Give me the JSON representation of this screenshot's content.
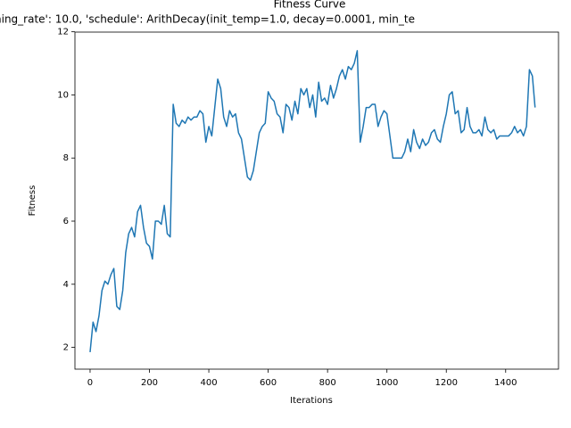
{
  "chart_data": {
    "type": "line",
    "title": "Fitness Curve",
    "subtitle": "ning_rate': 10.0, 'schedule': ArithDecay(init_temp=1.0, decay=0.0001, min_te",
    "x_label": "Iterations",
    "y_label": "Fitness",
    "xlim": [
      -51,
      1578
    ],
    "ylim": [
      1.31,
      11.99
    ],
    "xticks": [
      0,
      200,
      400,
      600,
      800,
      1000,
      1200,
      1400
    ],
    "yticks": [
      2,
      4,
      6,
      8,
      10,
      12
    ],
    "x": [
      0,
      10,
      20,
      30,
      40,
      50,
      60,
      70,
      80,
      90,
      100,
      110,
      120,
      130,
      140,
      150,
      160,
      170,
      180,
      190,
      200,
      210,
      220,
      230,
      240,
      250,
      260,
      270,
      280,
      290,
      300,
      310,
      320,
      330,
      340,
      350,
      360,
      370,
      380,
      390,
      400,
      410,
      420,
      430,
      440,
      450,
      460,
      470,
      480,
      490,
      500,
      510,
      520,
      530,
      540,
      550,
      560,
      570,
      580,
      590,
      600,
      610,
      620,
      630,
      640,
      650,
      660,
      670,
      680,
      690,
      700,
      710,
      720,
      730,
      740,
      750,
      760,
      770,
      780,
      790,
      800,
      810,
      820,
      830,
      840,
      850,
      860,
      870,
      880,
      890,
      900,
      910,
      920,
      930,
      940,
      950,
      960,
      970,
      980,
      990,
      1000,
      1010,
      1020,
      1030,
      1040,
      1050,
      1060,
      1070,
      1080,
      1090,
      1100,
      1110,
      1120,
      1130,
      1140,
      1150,
      1160,
      1170,
      1180,
      1190,
      1200,
      1210,
      1220,
      1230,
      1240,
      1250,
      1260,
      1270,
      1280,
      1290,
      1300,
      1310,
      1320,
      1330,
      1340,
      1350,
      1360,
      1370,
      1380,
      1390,
      1400,
      1410,
      1420,
      1430,
      1440,
      1450,
      1460,
      1470,
      1480,
      1490,
      1499
    ],
    "series": [
      {
        "name": "Fitness",
        "color": "#1f77b4",
        "values": [
          1.85,
          2.8,
          2.5,
          3.0,
          3.8,
          4.1,
          4.0,
          4.3,
          4.5,
          3.3,
          3.2,
          3.8,
          5.0,
          5.6,
          5.8,
          5.5,
          6.3,
          6.5,
          5.8,
          5.3,
          5.2,
          4.8,
          6.0,
          6.0,
          5.9,
          6.5,
          5.6,
          5.5,
          9.7,
          9.1,
          9.0,
          9.2,
          9.1,
          9.3,
          9.2,
          9.3,
          9.3,
          9.5,
          9.4,
          8.5,
          9.0,
          8.7,
          9.6,
          10.5,
          10.2,
          9.3,
          9.0,
          9.5,
          9.3,
          9.4,
          8.8,
          8.6,
          8.0,
          7.4,
          7.3,
          7.6,
          8.2,
          8.8,
          9.0,
          9.1,
          10.1,
          9.9,
          9.8,
          9.4,
          9.3,
          8.8,
          9.7,
          9.6,
          9.2,
          9.8,
          9.4,
          10.2,
          10.0,
          10.2,
          9.6,
          10.0,
          9.3,
          10.4,
          9.8,
          9.9,
          9.7,
          10.3,
          9.9,
          10.2,
          10.6,
          10.8,
          10.5,
          10.9,
          10.8,
          11.0,
          11.4,
          8.5,
          9.0,
          9.6,
          9.6,
          9.7,
          9.7,
          9.0,
          9.3,
          9.5,
          9.4,
          8.7,
          8.0,
          8.0,
          8.0,
          8.0,
          8.2,
          8.6,
          8.2,
          8.9,
          8.5,
          8.3,
          8.6,
          8.4,
          8.5,
          8.8,
          8.9,
          8.6,
          8.5,
          9.0,
          9.4,
          10.0,
          10.1,
          9.4,
          9.5,
          8.8,
          8.9,
          9.6,
          9.0,
          8.8,
          8.8,
          8.9,
          8.7,
          9.3,
          8.9,
          8.8,
          8.9,
          8.6,
          8.7,
          8.7,
          8.7,
          8.7,
          8.8,
          9.0,
          8.8,
          8.9,
          8.7,
          9.0,
          10.8,
          10.6,
          9.6
        ]
      }
    ]
  }
}
